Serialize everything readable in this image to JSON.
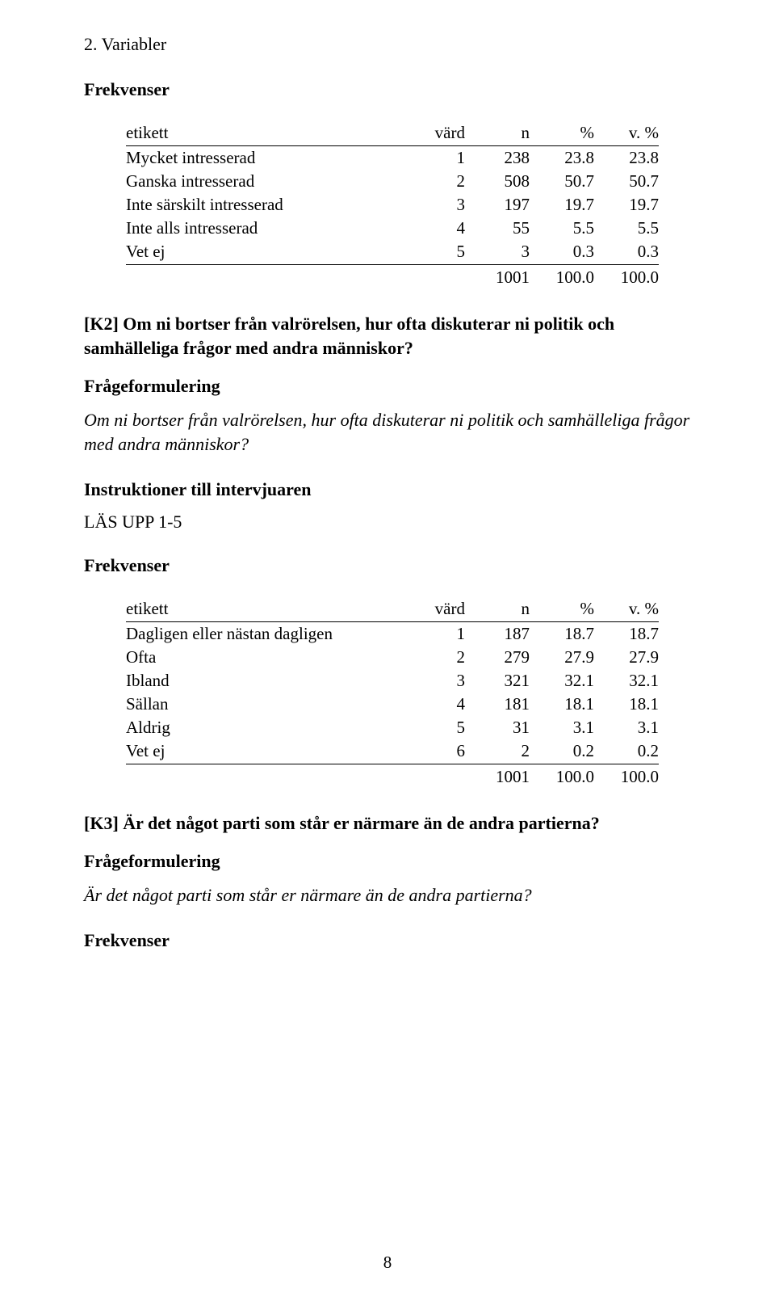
{
  "header": "2. Variabler",
  "labels": {
    "frekvenser": "Frekvenser",
    "frageformulering": "Frågeformulering",
    "instruktioner": "Instruktioner till intervjuaren"
  },
  "table_headers": {
    "etikett": "etikett",
    "vard": "värd",
    "n": "n",
    "pct": "%",
    "vpct": "v. %"
  },
  "table1": {
    "rows": [
      {
        "etikett": "Mycket intresserad",
        "vard": "1",
        "n": "238",
        "pct": "23.8",
        "vpct": "23.8"
      },
      {
        "etikett": "Ganska intresserad",
        "vard": "2",
        "n": "508",
        "pct": "50.7",
        "vpct": "50.7"
      },
      {
        "etikett": "Inte särskilt intresserad",
        "vard": "3",
        "n": "197",
        "pct": "19.7",
        "vpct": "19.7"
      },
      {
        "etikett": "Inte alls intresserad",
        "vard": "4",
        "n": "55",
        "pct": "5.5",
        "vpct": "5.5"
      },
      {
        "etikett": "Vet ej",
        "vard": "5",
        "n": "3",
        "pct": "0.3",
        "vpct": "0.3"
      }
    ],
    "total": {
      "n": "1001",
      "pct": "100.0",
      "vpct": "100.0"
    }
  },
  "k2": {
    "heading": "[K2] Om ni bortser från valrörelsen, hur ofta diskuterar ni politik och samhälleliga frågor med andra människor?",
    "formulering": "Om ni bortser från valrörelsen, hur ofta diskuterar ni politik och samhälleliga frågor med andra människor?",
    "instruction_value": "LÄS UPP 1-5"
  },
  "table2": {
    "rows": [
      {
        "etikett": "Dagligen eller nästan dagligen",
        "vard": "1",
        "n": "187",
        "pct": "18.7",
        "vpct": "18.7"
      },
      {
        "etikett": "Ofta",
        "vard": "2",
        "n": "279",
        "pct": "27.9",
        "vpct": "27.9"
      },
      {
        "etikett": "Ibland",
        "vard": "3",
        "n": "321",
        "pct": "32.1",
        "vpct": "32.1"
      },
      {
        "etikett": "Sällan",
        "vard": "4",
        "n": "181",
        "pct": "18.1",
        "vpct": "18.1"
      },
      {
        "etikett": "Aldrig",
        "vard": "5",
        "n": "31",
        "pct": "3.1",
        "vpct": "3.1"
      },
      {
        "etikett": "Vet ej",
        "vard": "6",
        "n": "2",
        "pct": "0.2",
        "vpct": "0.2"
      }
    ],
    "total": {
      "n": "1001",
      "pct": "100.0",
      "vpct": "100.0"
    }
  },
  "k3": {
    "heading": "[K3] Är det något parti som står er närmare än de andra partierna?",
    "formulering": "Är det något parti som står er närmare än de andra partierna?"
  },
  "page_number": "8"
}
